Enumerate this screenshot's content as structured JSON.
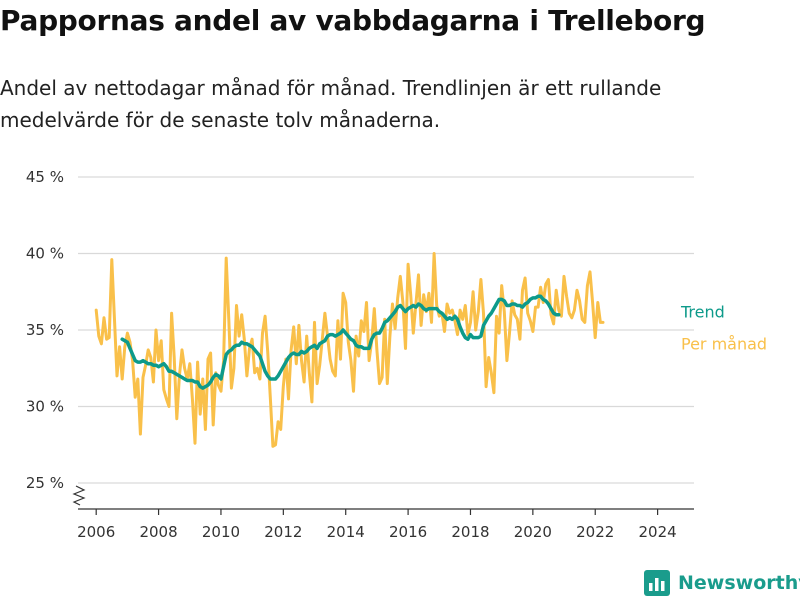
{
  "header": {
    "title": "Pappornas andel av vabbdagarna i Trelleborg",
    "subtitle": "Andel av nettodagar månad för månad. Trendlinjen är ett rullande medelvärde för de senaste tolv månaderna."
  },
  "brand": {
    "name": "Newsworthy",
    "icon": "bar-chart-logo-icon",
    "color": "#1a9c8c"
  },
  "chart_data": {
    "type": "line",
    "x_start": "2006-01",
    "x_step": "month",
    "xlim": [
      "2005-06",
      "2025-03"
    ],
    "x_ticks": [
      {
        "label": "2006",
        "year": 2006
      },
      {
        "label": "2008",
        "year": 2008
      },
      {
        "label": "2010",
        "year": 2010
      },
      {
        "label": "2012",
        "year": 2012
      },
      {
        "label": "2014",
        "year": 2014
      },
      {
        "label": "2016",
        "year": 2016
      },
      {
        "label": "2018",
        "year": 2018
      },
      {
        "label": "2020",
        "year": 2020
      },
      {
        "label": "2022",
        "year": 2022
      },
      {
        "label": "2024",
        "year": 2024
      }
    ],
    "ylim": [
      25,
      45
    ],
    "y_ticks": [
      {
        "label": "25 %",
        "value": 25
      },
      {
        "label": "30 %",
        "value": 30
      },
      {
        "label": "35 %",
        "value": 35
      },
      {
        "label": "40 %",
        "value": 40
      },
      {
        "label": "45 %",
        "value": 45
      }
    ],
    "y_axis_break": true,
    "grid": "horizontal",
    "series": [
      {
        "name": "Per månad",
        "color": "#f9c04a",
        "values": [
          36.3,
          34.6,
          34.1,
          35.8,
          34.4,
          34.5,
          39.6,
          35.8,
          32.0,
          33.9,
          31.8,
          33.9,
          34.8,
          34.2,
          33.0,
          30.6,
          31.8,
          28.2,
          31.9,
          32.7,
          33.7,
          33.2,
          31.6,
          35.0,
          33.0,
          34.3,
          31.1,
          30.5,
          30.0,
          36.1,
          33.2,
          29.2,
          32.0,
          33.7,
          32.5,
          31.8,
          32.8,
          30.5,
          27.6,
          32.9,
          29.5,
          31.8,
          28.5,
          33.1,
          33.5,
          28.8,
          32.2,
          31.4,
          31.0,
          33.0,
          39.7,
          35.7,
          31.2,
          32.5,
          36.6,
          34.6,
          36.0,
          34.4,
          32.0,
          33.8,
          34.4,
          32.2,
          32.5,
          31.8,
          34.8,
          35.9,
          33.6,
          30.6,
          27.4,
          27.5,
          29.0,
          28.5,
          31.3,
          33.1,
          30.5,
          33.7,
          35.2,
          32.8,
          35.3,
          33.0,
          31.6,
          34.6,
          32.2,
          30.3,
          35.5,
          31.5,
          32.7,
          34.4,
          36.1,
          34.6,
          33.1,
          32.3,
          32.0,
          35.6,
          33.1,
          37.4,
          36.8,
          34.2,
          33.0,
          31.0,
          34.6,
          33.3,
          35.6,
          34.9,
          36.8,
          33.0,
          34.3,
          36.4,
          33.7,
          31.5,
          31.9,
          35.7,
          31.5,
          34.6,
          36.7,
          35.1,
          37.1,
          38.5,
          36.8,
          33.8,
          39.3,
          37.3,
          34.8,
          36.7,
          38.6,
          35.3,
          37.3,
          36.2,
          37.4,
          35.5,
          40.0,
          36.6,
          35.9,
          36.1,
          34.9,
          36.7,
          36.1,
          36.3,
          35.6,
          34.7,
          36.3,
          35.7,
          36.6,
          34.7,
          35.5,
          37.5,
          35.0,
          36.2,
          38.3,
          36.1,
          31.3,
          33.2,
          32.2,
          30.9,
          35.9,
          34.8,
          37.9,
          36.2,
          33.0,
          34.8,
          36.9,
          36.0,
          35.7,
          34.4,
          37.6,
          38.4,
          36.1,
          35.6,
          34.9,
          36.5,
          36.5,
          37.8,
          36.8,
          38.0,
          38.3,
          36.0,
          35.4,
          37.6,
          36.3,
          35.9,
          38.5,
          37.2,
          36.1,
          35.8,
          36.3,
          37.6,
          36.9,
          35.7,
          35.5,
          37.9,
          38.8,
          36.8,
          34.5,
          36.8,
          35.5,
          35.5
        ]
      },
      {
        "name": "Trend",
        "color": "#0d9a8a",
        "start": "2006-11",
        "values": [
          34.4,
          34.3,
          34.2,
          33.8,
          33.4,
          33.0,
          32.9,
          32.9,
          33.0,
          32.9,
          32.8,
          32.8,
          32.7,
          32.7,
          32.6,
          32.7,
          32.8,
          32.6,
          32.3,
          32.3,
          32.2,
          32.1,
          32.0,
          31.9,
          31.8,
          31.7,
          31.7,
          31.7,
          31.6,
          31.6,
          31.3,
          31.2,
          31.3,
          31.4,
          31.6,
          31.9,
          32.1,
          32.0,
          31.8,
          32.6,
          33.4,
          33.6,
          33.7,
          33.9,
          34.0,
          34.0,
          34.2,
          34.1,
          34.1,
          34.0,
          33.9,
          33.7,
          33.5,
          33.3,
          32.8,
          32.3,
          32.0,
          31.8,
          31.8,
          31.8,
          32.0,
          32.3,
          32.6,
          32.9,
          33.2,
          33.4,
          33.5,
          33.4,
          33.4,
          33.6,
          33.5,
          33.6,
          33.8,
          33.9,
          34.0,
          33.8,
          34.1,
          34.2,
          34.3,
          34.6,
          34.7,
          34.7,
          34.6,
          34.7,
          34.8,
          35.0,
          34.8,
          34.6,
          34.4,
          34.3,
          34.0,
          33.9,
          33.9,
          33.8,
          33.8,
          33.8,
          34.4,
          34.7,
          34.8,
          34.8,
          35.1,
          35.5,
          35.6,
          35.8,
          36.0,
          36.2,
          36.5,
          36.6,
          36.4,
          36.2,
          36.4,
          36.5,
          36.6,
          36.5,
          36.7,
          36.6,
          36.4,
          36.3,
          36.4,
          36.4,
          36.4,
          36.4,
          36.2,
          36.1,
          35.9,
          35.7,
          35.8,
          35.7,
          35.9,
          35.7,
          35.2,
          34.8,
          34.5,
          34.4,
          34.7,
          34.5,
          34.5,
          34.5,
          34.6,
          35.3,
          35.6,
          35.9,
          36.1,
          36.4,
          36.7,
          37.0,
          37.0,
          36.9,
          36.6,
          36.6,
          36.7,
          36.7,
          36.6,
          36.6,
          36.5,
          36.7,
          36.8,
          37.0,
          37.1,
          37.1,
          37.2,
          37.2,
          37.0,
          36.9,
          36.7,
          36.4,
          36.1,
          36.0,
          36.0
        ]
      }
    ]
  }
}
